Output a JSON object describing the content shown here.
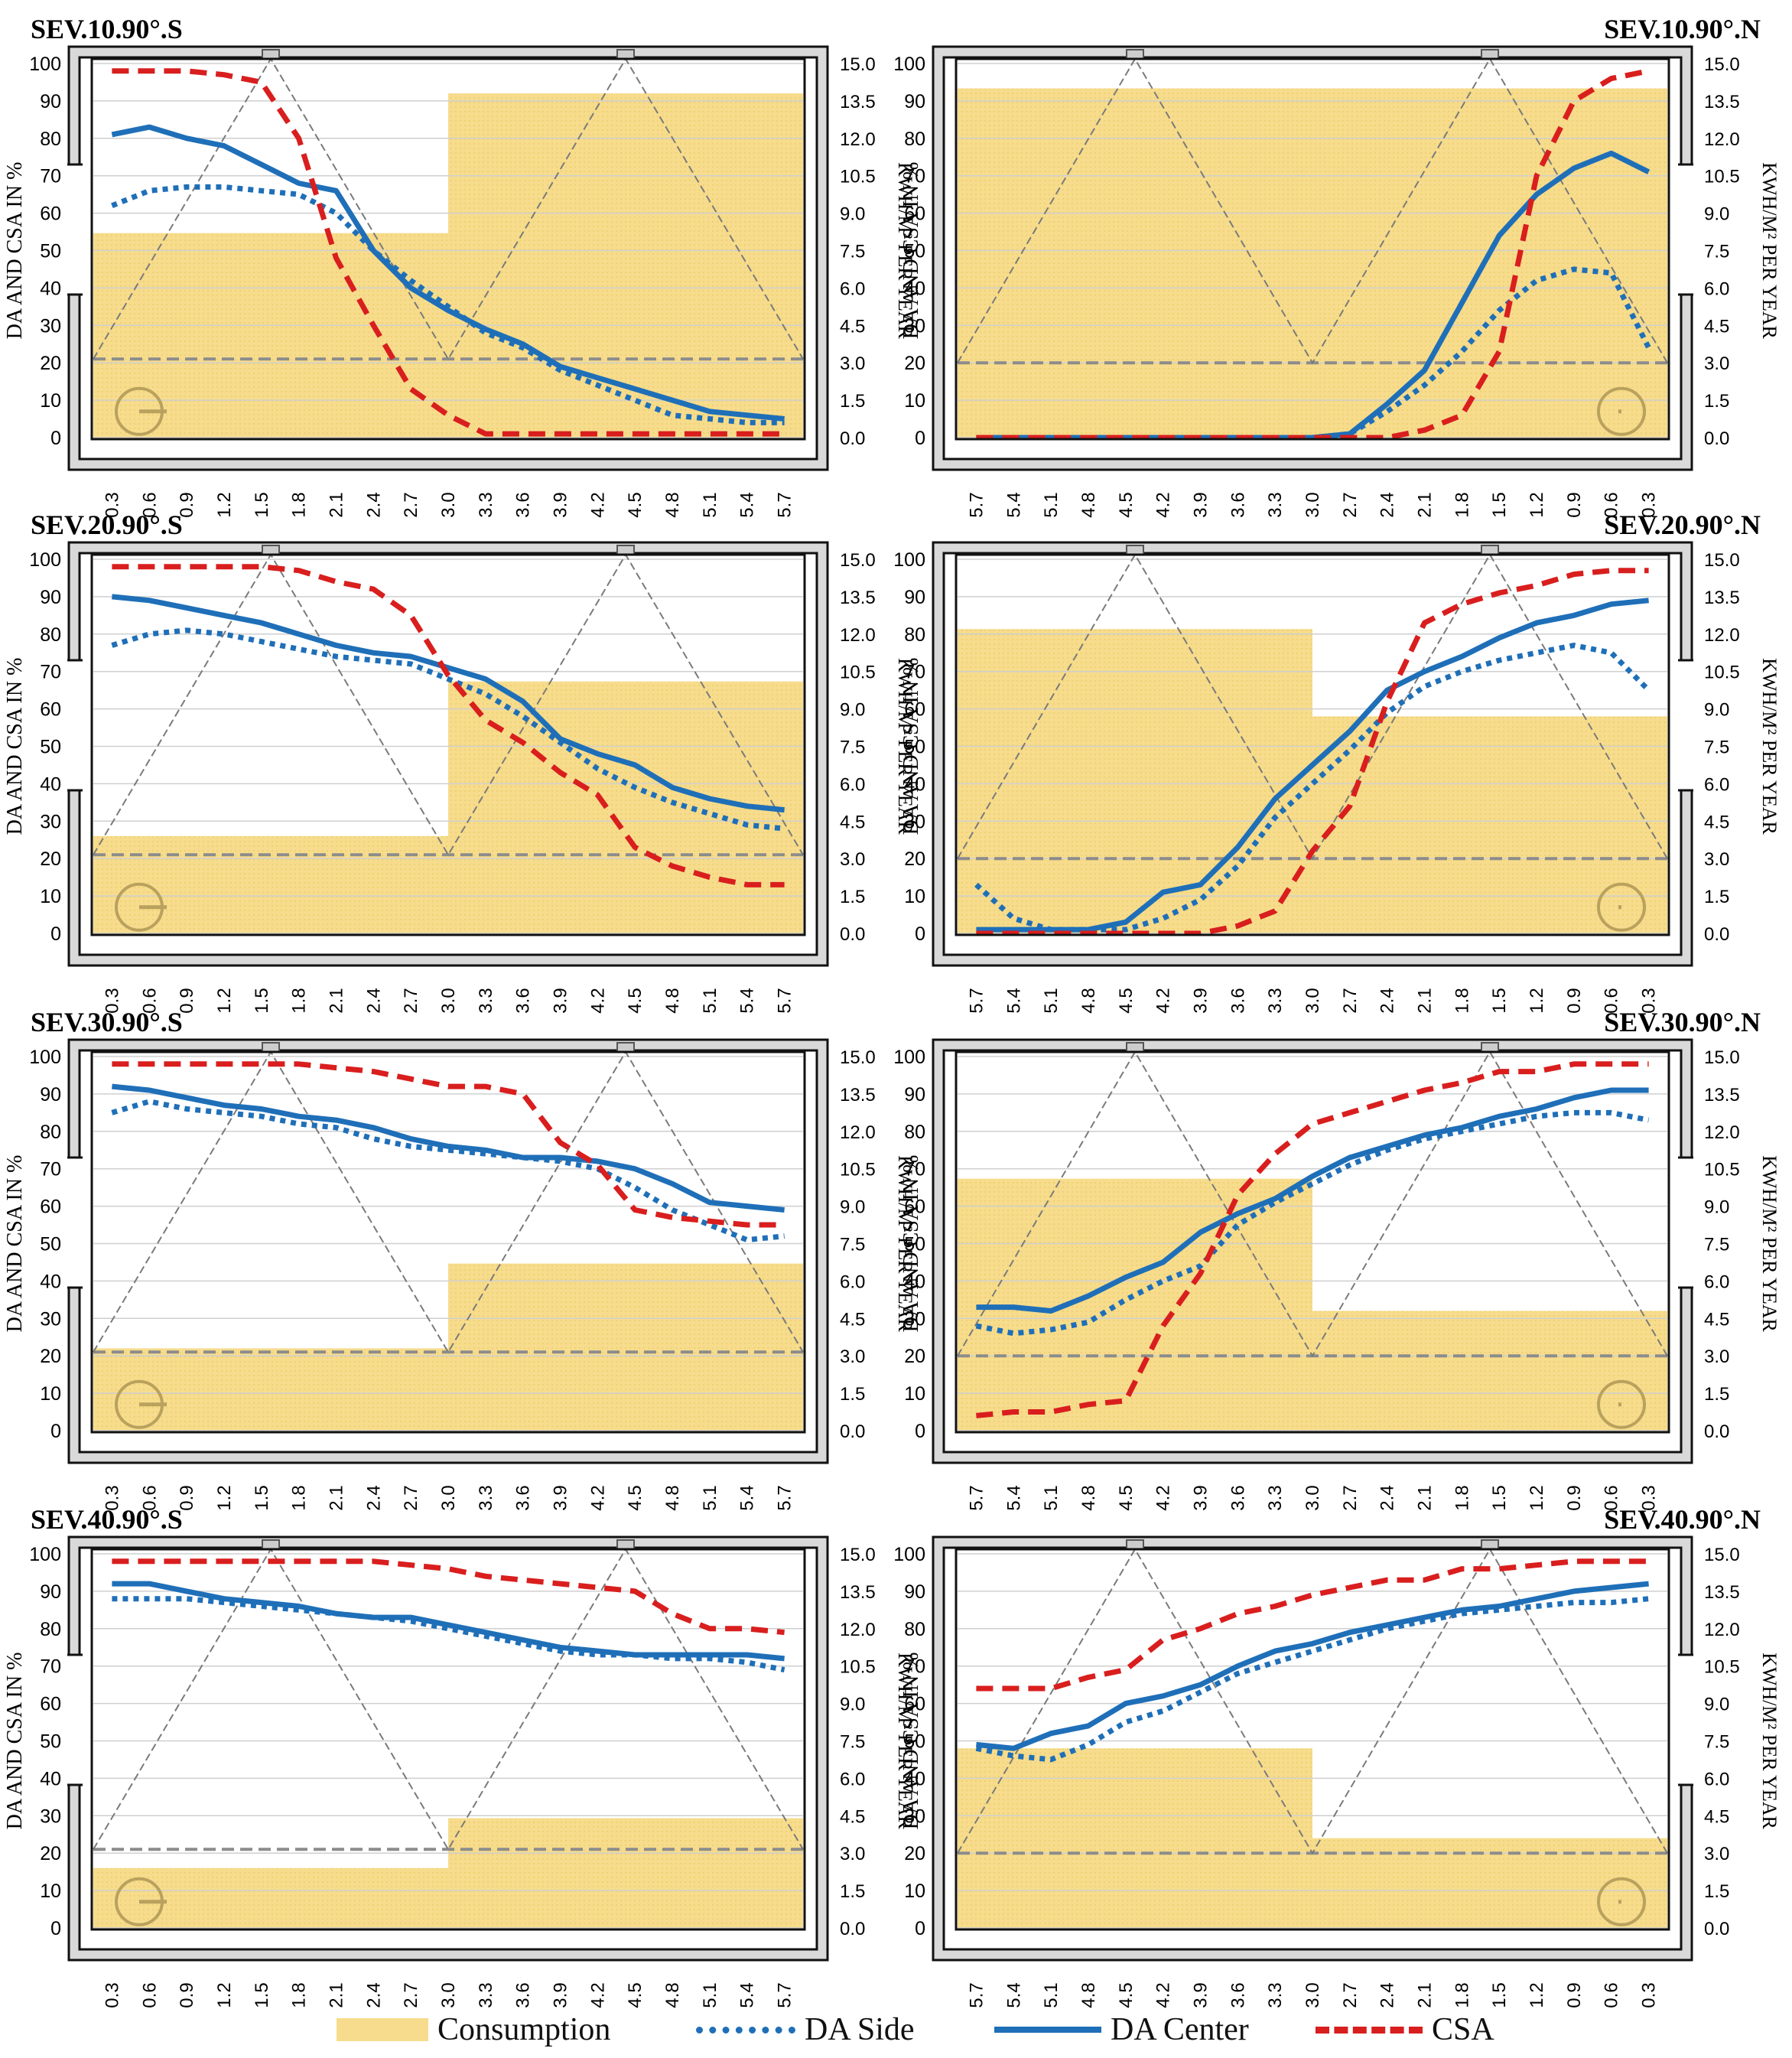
{
  "legend": {
    "consumption": "Consumption",
    "da_side": "DA Side",
    "da_center": "DA Center",
    "csa": "CSA"
  },
  "colors": {
    "consumption": "#F6DC8C",
    "da_side": "#1F6FB8",
    "da_center": "#1F6FB8",
    "csa": "#D91E1E",
    "frame": "#111111",
    "wall": "#D9D9D9",
    "grid": "#CFCFCF",
    "guide": "#8C7A52"
  },
  "chart_data": [
    {
      "title": "SEV.10.90°.S",
      "side": "S",
      "type": "line",
      "categories": [
        "0.3",
        "0.6",
        "0.9",
        "1.2",
        "1.5",
        "1.8",
        "2.1",
        "2.4",
        "2.7",
        "3.0",
        "3.3",
        "3.6",
        "3.9",
        "4.2",
        "4.5",
        "4.8",
        "5.1",
        "5.4",
        "5.7"
      ],
      "ylabel": "DA AND CSA IN %",
      "y2label": "KWH/M² PER YEAR",
      "ylim": [
        0,
        100
      ],
      "y2lim": [
        0,
        15
      ],
      "yticks": [
        "0",
        "10",
        "20",
        "30",
        "40",
        "50",
        "60",
        "70",
        "80",
        "90",
        "100"
      ],
      "y2ticks": [
        "0.0",
        "1.5",
        "3.0",
        "4.5",
        "6.0",
        "7.5",
        "9.0",
        "10.5",
        "12.0",
        "13.5",
        "15.0"
      ],
      "consumption": [
        [
          0,
          9.5,
          8.2
        ],
        [
          9.5,
          19,
          13.8
        ]
      ],
      "threshold": 21,
      "series": [
        {
          "name": "DA Center",
          "values": [
            81,
            83,
            80,
            78,
            73,
            68,
            66,
            50,
            40,
            34,
            29,
            25,
            19,
            16,
            13,
            10,
            7,
            6,
            5
          ]
        },
        {
          "name": "DA Side",
          "values": [
            62,
            66,
            67,
            67,
            66,
            65,
            60,
            50,
            42,
            35,
            28,
            24,
            18,
            14,
            10,
            6,
            5,
            4,
            4
          ]
        },
        {
          "name": "CSA",
          "values": [
            98,
            98,
            98,
            97,
            95,
            80,
            48,
            30,
            13,
            6,
            1,
            1,
            1,
            1,
            1,
            1,
            1,
            1,
            1
          ]
        }
      ]
    },
    {
      "title": "SEV.10.90°.N",
      "side": "N",
      "type": "line",
      "categories": [
        "5.7",
        "5.4",
        "5.1",
        "4.8",
        "4.5",
        "4.2",
        "3.9",
        "3.6",
        "3.3",
        "3.0",
        "2.7",
        "2.4",
        "2.1",
        "1.8",
        "1.5",
        "1.2",
        "0.9",
        "0.6",
        "0.3"
      ],
      "ylabel": "DA AND CSA IN %",
      "y2label": "KWH/M² PER YEAR",
      "ylim": [
        0,
        100
      ],
      "y2lim": [
        0,
        15
      ],
      "yticks": [
        "0",
        "10",
        "20",
        "30",
        "40",
        "50",
        "60",
        "70",
        "80",
        "90",
        "100"
      ],
      "y2ticks": [
        "0.0",
        "1.5",
        "3.0",
        "4.5",
        "6.0",
        "7.5",
        "9.0",
        "10.5",
        "12.0",
        "13.5",
        "15.0"
      ],
      "consumption": [
        [
          0,
          19,
          14
        ]
      ],
      "threshold": 20,
      "series": [
        {
          "name": "DA Center",
          "values": [
            0,
            0,
            0,
            0,
            0,
            0,
            0,
            0,
            0,
            0,
            1,
            9,
            18,
            36,
            54,
            65,
            72,
            76,
            71
          ]
        },
        {
          "name": "DA Side",
          "values": [
            0,
            0,
            0,
            0,
            0,
            0,
            0,
            0,
            0,
            0,
            1,
            7,
            14,
            23,
            34,
            42,
            45,
            44,
            24
          ]
        },
        {
          "name": "CSA",
          "values": [
            0,
            0,
            0,
            0,
            0,
            0,
            0,
            0,
            0,
            0,
            0,
            0,
            2,
            6,
            23,
            70,
            90,
            96,
            98
          ]
        }
      ]
    },
    {
      "title": "SEV.20.90°.S",
      "side": "S",
      "type": "line",
      "categories": [
        "0.3",
        "0.6",
        "0.9",
        "1.2",
        "1.5",
        "1.8",
        "2.1",
        "2.4",
        "2.7",
        "3.0",
        "3.3",
        "3.6",
        "3.9",
        "4.2",
        "4.5",
        "4.8",
        "5.1",
        "5.4",
        "5.7"
      ],
      "ylabel": "DA AND CSA IN %",
      "y2label": "KWH/M² PER YEAR",
      "ylim": [
        0,
        100
      ],
      "y2lim": [
        0,
        15
      ],
      "yticks": [
        "0",
        "10",
        "20",
        "30",
        "40",
        "50",
        "60",
        "70",
        "80",
        "90",
        "100"
      ],
      "y2ticks": [
        "0.0",
        "1.5",
        "3.0",
        "4.5",
        "6.0",
        "7.5",
        "9.0",
        "10.5",
        "12.0",
        "13.5",
        "15.0"
      ],
      "consumption": [
        [
          0,
          9.5,
          3.9
        ],
        [
          9.5,
          19,
          10.1
        ]
      ],
      "threshold": 21,
      "series": [
        {
          "name": "DA Center",
          "values": [
            90,
            89,
            87,
            85,
            83,
            80,
            77,
            75,
            74,
            71,
            68,
            62,
            52,
            48,
            45,
            39,
            36,
            34,
            33
          ]
        },
        {
          "name": "DA Side",
          "values": [
            77,
            80,
            81,
            80,
            78,
            76,
            74,
            73,
            72,
            68,
            64,
            58,
            51,
            44,
            39,
            35,
            32,
            29,
            28
          ]
        },
        {
          "name": "CSA",
          "values": [
            98,
            98,
            98,
            98,
            98,
            97,
            94,
            92,
            85,
            69,
            57,
            51,
            43,
            37,
            23,
            18,
            15,
            13,
            13
          ]
        }
      ]
    },
    {
      "title": "SEV.20.90°.N",
      "side": "N",
      "type": "line",
      "categories": [
        "5.7",
        "5.4",
        "5.1",
        "4.8",
        "4.5",
        "4.2",
        "3.9",
        "3.6",
        "3.3",
        "3.0",
        "2.7",
        "2.4",
        "2.1",
        "1.8",
        "1.5",
        "1.2",
        "0.9",
        "0.6",
        "0.3"
      ],
      "ylabel": "DA AND CSA IN %",
      "y2label": "KWH/M² PER YEAR",
      "ylim": [
        0,
        100
      ],
      "y2lim": [
        0,
        15
      ],
      "yticks": [
        "0",
        "10",
        "20",
        "30",
        "40",
        "50",
        "60",
        "70",
        "80",
        "90",
        "100"
      ],
      "y2ticks": [
        "0.0",
        "1.5",
        "3.0",
        "4.5",
        "6.0",
        "7.5",
        "9.0",
        "10.5",
        "12.0",
        "13.5",
        "15.0"
      ],
      "consumption": [
        [
          0,
          9.5,
          12.2
        ],
        [
          9.5,
          19,
          8.7
        ]
      ],
      "threshold": 20,
      "series": [
        {
          "name": "DA Center",
          "values": [
            1,
            1,
            1,
            1,
            3,
            11,
            13,
            23,
            36,
            45,
            54,
            65,
            70,
            74,
            79,
            83,
            85,
            88,
            89
          ]
        },
        {
          "name": "DA Side",
          "values": [
            13,
            4,
            1,
            1,
            1,
            4,
            9,
            18,
            31,
            40,
            49,
            59,
            66,
            70,
            73,
            75,
            77,
            75,
            65
          ]
        },
        {
          "name": "CSA",
          "values": [
            0,
            0,
            0,
            0,
            0,
            0,
            0,
            2,
            6,
            22,
            34,
            62,
            83,
            88,
            91,
            93,
            96,
            97,
            97
          ]
        }
      ]
    },
    {
      "title": "SEV.30.90°.S",
      "side": "S",
      "type": "line",
      "categories": [
        "0.3",
        "0.6",
        "0.9",
        "1.2",
        "1.5",
        "1.8",
        "2.1",
        "2.4",
        "2.7",
        "3.0",
        "3.3",
        "3.6",
        "3.9",
        "4.2",
        "4.5",
        "4.8",
        "5.1",
        "5.4",
        "5.7"
      ],
      "ylabel": "DA AND CSA IN %",
      "y2label": "KWH/M² PER YEAR",
      "ylim": [
        0,
        100
      ],
      "y2lim": [
        0,
        15
      ],
      "yticks": [
        "0",
        "10",
        "20",
        "30",
        "40",
        "50",
        "60",
        "70",
        "80",
        "90",
        "100"
      ],
      "y2ticks": [
        "0.0",
        "1.5",
        "3.0",
        "4.5",
        "6.0",
        "7.5",
        "9.0",
        "10.5",
        "12.0",
        "13.5",
        "15.0"
      ],
      "consumption": [
        [
          0,
          9.5,
          3.3
        ],
        [
          9.5,
          19,
          6.7
        ]
      ],
      "threshold": 21,
      "series": [
        {
          "name": "DA Center",
          "values": [
            92,
            91,
            89,
            87,
            86,
            84,
            83,
            81,
            78,
            76,
            75,
            73,
            73,
            72,
            70,
            66,
            61,
            60,
            59
          ]
        },
        {
          "name": "DA Side",
          "values": [
            85,
            88,
            86,
            85,
            84,
            82,
            81,
            78,
            76,
            75,
            74,
            73,
            72,
            70,
            65,
            59,
            55,
            51,
            52
          ]
        },
        {
          "name": "CSA",
          "values": [
            98,
            98,
            98,
            98,
            98,
            98,
            97,
            96,
            94,
            92,
            92,
            90,
            77,
            71,
            59,
            57,
            56,
            55,
            55
          ]
        }
      ]
    },
    {
      "title": "SEV.30.90°.N",
      "side": "N",
      "type": "line",
      "categories": [
        "5.7",
        "5.4",
        "5.1",
        "4.8",
        "4.5",
        "4.2",
        "3.9",
        "3.6",
        "3.3",
        "3.0",
        "2.7",
        "2.4",
        "2.1",
        "1.8",
        "1.5",
        "1.2",
        "0.9",
        "0.6",
        "0.3"
      ],
      "ylabel": "DA AND CSA IN %",
      "y2label": "KWH/M² PER YEAR",
      "ylim": [
        0,
        100
      ],
      "y2lim": [
        0,
        15
      ],
      "yticks": [
        "0",
        "10",
        "20",
        "30",
        "40",
        "50",
        "60",
        "70",
        "80",
        "90",
        "100"
      ],
      "y2ticks": [
        "0.0",
        "1.5",
        "3.0",
        "4.5",
        "6.0",
        "7.5",
        "9.0",
        "10.5",
        "12.0",
        "13.5",
        "15.0"
      ],
      "consumption": [
        [
          0,
          9.5,
          10.1
        ],
        [
          9.5,
          19,
          4.8
        ]
      ],
      "threshold": 20,
      "series": [
        {
          "name": "DA Center",
          "values": [
            33,
            33,
            32,
            36,
            41,
            45,
            53,
            58,
            62,
            68,
            73,
            76,
            79,
            81,
            84,
            86,
            89,
            91,
            91
          ]
        },
        {
          "name": "DA Side",
          "values": [
            28,
            26,
            27,
            29,
            35,
            40,
            44,
            55,
            61,
            66,
            71,
            75,
            78,
            80,
            82,
            84,
            85,
            85,
            83
          ]
        },
        {
          "name": "CSA",
          "values": [
            4,
            5,
            5,
            7,
            8,
            28,
            42,
            63,
            74,
            82,
            85,
            88,
            91,
            93,
            96,
            96,
            98,
            98,
            98
          ]
        }
      ]
    },
    {
      "title": "SEV.40.90°.S",
      "side": "S",
      "type": "line",
      "categories": [
        "0.3",
        "0.6",
        "0.9",
        "1.2",
        "1.5",
        "1.8",
        "2.1",
        "2.4",
        "2.7",
        "3.0",
        "3.3",
        "3.6",
        "3.9",
        "4.2",
        "4.5",
        "4.8",
        "5.1",
        "5.4",
        "5.7"
      ],
      "ylabel": "DA AND CSA IN %",
      "y2label": "KWH/M² PER YEAR",
      "ylim": [
        0,
        100
      ],
      "y2lim": [
        0,
        15
      ],
      "yticks": [
        "0",
        "10",
        "20",
        "30",
        "40",
        "50",
        "60",
        "70",
        "80",
        "90",
        "100"
      ],
      "y2ticks": [
        "0.0",
        "1.5",
        "3.0",
        "4.5",
        "6.0",
        "7.5",
        "9.0",
        "10.5",
        "12.0",
        "13.5",
        "15.0"
      ],
      "consumption": [
        [
          0,
          9.5,
          2.4
        ],
        [
          9.5,
          19,
          4.4
        ]
      ],
      "threshold": 21,
      "series": [
        {
          "name": "DA Center",
          "values": [
            92,
            92,
            90,
            88,
            87,
            86,
            84,
            83,
            83,
            81,
            79,
            77,
            75,
            74,
            73,
            73,
            73,
            73,
            72
          ]
        },
        {
          "name": "DA Side",
          "values": [
            88,
            88,
            88,
            87,
            86,
            85,
            84,
            83,
            82,
            80,
            78,
            76,
            74,
            73,
            73,
            72,
            72,
            71,
            69
          ]
        },
        {
          "name": "CSA",
          "values": [
            98,
            98,
            98,
            98,
            98,
            98,
            98,
            98,
            97,
            96,
            94,
            93,
            92,
            91,
            90,
            84,
            80,
            80,
            79
          ]
        }
      ]
    },
    {
      "title": "SEV.40.90°.N",
      "side": "N",
      "type": "line",
      "categories": [
        "5.7",
        "5.4",
        "5.1",
        "4.8",
        "4.5",
        "4.2",
        "3.9",
        "3.6",
        "3.3",
        "3.0",
        "2.7",
        "2.4",
        "2.1",
        "1.8",
        "1.5",
        "1.2",
        "0.9",
        "0.6",
        "0.3"
      ],
      "ylabel": "DA AND CSA IN %",
      "y2label": "KWH/M² PER YEAR",
      "ylim": [
        0,
        100
      ],
      "y2lim": [
        0,
        15
      ],
      "yticks": [
        "0",
        "10",
        "20",
        "30",
        "40",
        "50",
        "60",
        "70",
        "80",
        "90",
        "100"
      ],
      "y2ticks": [
        "0.0",
        "1.5",
        "3.0",
        "4.5",
        "6.0",
        "7.5",
        "9.0",
        "10.5",
        "12.0",
        "13.5",
        "15.0"
      ],
      "consumption": [
        [
          0,
          9.5,
          7.2
        ],
        [
          9.5,
          19,
          3.6
        ]
      ],
      "threshold": 20,
      "series": [
        {
          "name": "DA Center",
          "values": [
            49,
            48,
            52,
            54,
            60,
            62,
            65,
            70,
            74,
            76,
            79,
            81,
            83,
            85,
            86,
            88,
            90,
            91,
            92
          ]
        },
        {
          "name": "DA Side",
          "values": [
            48,
            46,
            45,
            49,
            55,
            58,
            63,
            68,
            71,
            74,
            77,
            80,
            82,
            84,
            85,
            86,
            87,
            87,
            88
          ]
        },
        {
          "name": "CSA",
          "values": [
            64,
            64,
            64,
            67,
            69,
            77,
            80,
            84,
            86,
            89,
            91,
            93,
            93,
            96,
            96,
            97,
            98,
            98,
            98
          ]
        }
      ]
    }
  ]
}
